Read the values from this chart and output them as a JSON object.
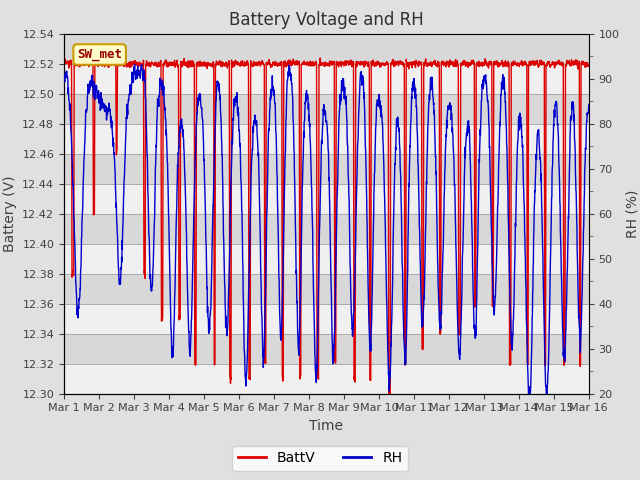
{
  "title": "Battery Voltage and RH",
  "xlabel": "Time",
  "ylabel_left": "Battery (V)",
  "ylabel_right": "RH (%)",
  "left_ylim": [
    12.3,
    12.54
  ],
  "right_ylim": [
    20,
    100
  ],
  "left_yticks": [
    12.3,
    12.32,
    12.34,
    12.36,
    12.38,
    12.4,
    12.42,
    12.44,
    12.46,
    12.48,
    12.5,
    12.52,
    12.54
  ],
  "right_yticks": [
    20,
    30,
    40,
    50,
    60,
    70,
    80,
    90,
    100
  ],
  "xtick_labels": [
    "Mar 1",
    "Mar 2",
    "Mar 3",
    "Mar 4",
    "Mar 5",
    "Mar 6",
    "Mar 7",
    "Mar 8",
    "Mar 9",
    "Mar 10",
    "Mar 11",
    "Mar 12",
    "Mar 13",
    "Mar 14",
    "Mar 15",
    "Mar 16"
  ],
  "line_batt_color": "#DD0000",
  "line_rh_color": "#0000CC",
  "line_width": 1.0,
  "bg_color": "#E0E0E0",
  "plot_bg_color": "#C8C8C8",
  "band_light": "#D8D8D8",
  "band_white": "#F0F0F0",
  "label_box_text": "SW_met",
  "label_box_bg": "#FFFFCC",
  "label_box_border": "#CC9900",
  "legend_batt": "BattV",
  "legend_rh": "RH",
  "title_fontsize": 12,
  "axis_label_fontsize": 10,
  "tick_fontsize": 8
}
